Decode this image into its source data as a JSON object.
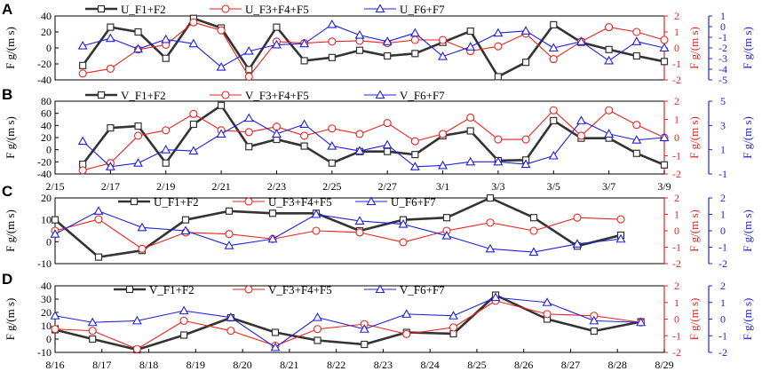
{
  "colors": {
    "s1": "#333333",
    "s2": "#e8231f",
    "s3": "#2020dd",
    "axis": "#000000"
  },
  "chart_data": [
    {
      "type": "line",
      "panel_label": "A",
      "left_label": "F g/(m s)",
      "right1_label": "F g/(m s)",
      "right2_label": "F g/(m s)",
      "x_tick_labels": [],
      "x_domain": [
        0,
        22
      ],
      "y1_range": [
        -40,
        40
      ],
      "y1_ticks": [
        -40,
        -20,
        0,
        20,
        40
      ],
      "y1_tick_labels": [
        "-40",
        "-20",
        "0",
        "20",
        "40"
      ],
      "y2_range": [
        -2,
        2
      ],
      "y2_ticks": [
        -2,
        -1,
        0,
        1,
        2
      ],
      "y2_tick_labels": [
        "-2",
        "-1",
        "0",
        "1",
        "2"
      ],
      "y3_range": [
        -5,
        1
      ],
      "y3_ticks": [
        -5,
        -4,
        -3,
        -2,
        -1,
        0,
        1
      ],
      "y3_tick_labels": [
        "-5",
        "-4",
        "-3",
        "-2",
        "-1",
        "0",
        "1"
      ],
      "series": [
        {
          "name": "U_F1+F2",
          "axis": "y1",
          "x": [
            1,
            2,
            3,
            4,
            5,
            6,
            7,
            8,
            9,
            10,
            11,
            12,
            13,
            14,
            15,
            16,
            17,
            18,
            19,
            20,
            21,
            22
          ],
          "values": [
            -22,
            26,
            20,
            -13,
            37,
            25,
            -27,
            26,
            -16,
            -12,
            -3,
            -10,
            -7,
            7,
            21,
            -36,
            -18,
            29,
            7,
            -2,
            -10,
            -17
          ]
        },
        {
          "name": "U_F3+F4+F5",
          "axis": "y2",
          "x": [
            1,
            2,
            3,
            4,
            5,
            6,
            7,
            8,
            9,
            10,
            11,
            12,
            13,
            14,
            15,
            16,
            17,
            18,
            19,
            20,
            21,
            22
          ],
          "values": [
            -1.6,
            -1.3,
            -0.1,
            0.2,
            1.6,
            1.1,
            -1.8,
            0.4,
            0.3,
            0.4,
            0.45,
            0.3,
            0.5,
            0.5,
            -0.2,
            0.1,
            0.9,
            -0.7,
            0.4,
            1.3,
            1.0,
            0.5
          ]
        },
        {
          "name": "U_F6+F7",
          "axis": "y3",
          "x": [
            1,
            2,
            3,
            4,
            5,
            6,
            7,
            8,
            9,
            10,
            11,
            12,
            13,
            14,
            15,
            16,
            17,
            18,
            19,
            20,
            21,
            22
          ],
          "values": [
            -1.8,
            -1.1,
            -2.1,
            -1.2,
            -1.6,
            -3.8,
            -2.3,
            -1.7,
            -1.6,
            0.2,
            -0.8,
            -1.4,
            -0.6,
            -2.8,
            -1.9,
            -0.6,
            -0.4,
            -2.0,
            -1.4,
            -3.2,
            -1.4,
            -2.0
          ]
        }
      ]
    },
    {
      "type": "line",
      "panel_label": "B",
      "left_label": "F g/(m s)",
      "right1_label": "F g/(m s)",
      "right2_label": "F g/(m s)",
      "x_domain": [
        0,
        22
      ],
      "x_tick_positions": [
        0,
        2,
        4,
        6,
        8,
        10,
        12,
        14,
        16,
        18,
        20,
        22
      ],
      "x_tick_labels": [
        "2/15",
        "2/17",
        "2/19",
        "2/21",
        "2/23",
        "2/25",
        "2/27",
        "3/1",
        "3/3",
        "3/5",
        "3/7",
        "3/9"
      ],
      "y1_range": [
        -40,
        80
      ],
      "y1_ticks": [
        -40,
        -20,
        0,
        20,
        40,
        60,
        80
      ],
      "y1_tick_labels": [
        "-40",
        "-20",
        "0",
        "20",
        "40",
        "60",
        "80"
      ],
      "y2_range": [
        -2,
        2
      ],
      "y2_ticks": [
        -2,
        -1,
        0,
        1,
        2
      ],
      "y2_tick_labels": [
        "-2",
        "-1",
        "0",
        "1",
        "2"
      ],
      "y3_range": [
        -1,
        5
      ],
      "y3_ticks": [
        -1,
        1,
        3,
        5
      ],
      "y3_tick_labels": [
        "-1",
        "1",
        "3",
        "5"
      ],
      "series": [
        {
          "name": "V_F1+F2",
          "axis": "y1",
          "x": [
            1,
            2,
            3,
            4,
            5,
            6,
            7,
            8,
            9,
            10,
            11,
            12,
            13,
            14,
            15,
            16,
            17,
            18,
            19,
            20,
            21,
            22
          ],
          "values": [
            -24,
            36,
            39,
            -22,
            42,
            73,
            5,
            17,
            6,
            -22,
            -3,
            -3,
            -8,
            23,
            31,
            -18,
            -17,
            48,
            19,
            19,
            -6,
            -25
          ]
        },
        {
          "name": "V_F3+F4+F5",
          "axis": "y2",
          "x": [
            1,
            2,
            3,
            4,
            5,
            6,
            7,
            8,
            9,
            10,
            11,
            12,
            13,
            14,
            15,
            16,
            17,
            18,
            19,
            20,
            21,
            22
          ],
          "values": [
            -1.8,
            -1.4,
            0.1,
            0.4,
            1.3,
            0.4,
            0.3,
            0.6,
            0.1,
            0.5,
            0.2,
            0.8,
            -0.2,
            0.2,
            1.1,
            -0.1,
            -0.1,
            1.5,
            0.1,
            1.5,
            0.7,
            0.0
          ]
        },
        {
          "name": "V_F6+F7",
          "axis": "y3",
          "x": [
            1,
            2,
            3,
            4,
            5,
            6,
            7,
            8,
            9,
            10,
            11,
            12,
            13,
            14,
            15,
            16,
            17,
            18,
            19,
            20,
            21,
            22
          ],
          "values": [
            1.7,
            -0.4,
            -0.1,
            1.0,
            0.9,
            2.3,
            3.6,
            2.3,
            3.1,
            1.3,
            0.9,
            1.4,
            -0.4,
            -0.3,
            0.0,
            0.0,
            -0.2,
            0.5,
            3.4,
            2.3,
            1.8,
            2.0
          ]
        }
      ]
    },
    {
      "type": "line",
      "panel_label": "C",
      "left_label": "F g/(m s)",
      "right1_label": "F g/(m s)",
      "right2_label": "F g/(m s)",
      "x_domain": [
        0,
        14
      ],
      "x_tick_labels": [],
      "y1_range": [
        -10,
        20
      ],
      "y1_ticks": [
        -10,
        0,
        10,
        20
      ],
      "y1_tick_labels": [
        "-10",
        "0",
        "10",
        "20"
      ],
      "y2_range": [
        -2,
        2
      ],
      "y2_ticks": [
        -2,
        -1,
        0,
        1,
        2
      ],
      "y2_tick_labels": [
        "-2",
        "-1",
        "0",
        "1",
        "2"
      ],
      "y3_range": [
        -2,
        2
      ],
      "y3_ticks": [
        -2,
        -1,
        0,
        1,
        2
      ],
      "y3_tick_labels": [
        "-2",
        "-1",
        "0",
        "1",
        "2"
      ],
      "series": [
        {
          "name": "U_F1+F2",
          "axis": "y1",
          "x": [
            0,
            1,
            2,
            3,
            4,
            5,
            6,
            7,
            8,
            9,
            10,
            11,
            12,
            13
          ],
          "values": [
            10,
            -7,
            -4,
            10,
            14,
            13,
            13,
            5,
            10,
            11,
            20,
            11,
            -2,
            3
          ]
        },
        {
          "name": "U_F3+F4+F5",
          "axis": "y2",
          "x": [
            0,
            1,
            2,
            3,
            4,
            5,
            6,
            7,
            8,
            9,
            10,
            11,
            12,
            13
          ],
          "values": [
            0.0,
            0.7,
            -1.1,
            -0.1,
            -0.2,
            -0.5,
            0.0,
            -0.1,
            -0.7,
            0.0,
            0.5,
            0.0,
            0.8,
            0.7
          ]
        },
        {
          "name": "U_F6+F7",
          "axis": "y3",
          "x": [
            0,
            1,
            2,
            3,
            4,
            5,
            6,
            7,
            8,
            9,
            10,
            11,
            12,
            13
          ],
          "values": [
            -0.2,
            1.2,
            0.2,
            0.0,
            -0.9,
            -0.5,
            1.0,
            0.6,
            0.4,
            -0.3,
            -1.1,
            -1.3,
            -0.8,
            -0.5
          ]
        }
      ]
    },
    {
      "type": "line",
      "panel_label": "D",
      "left_label": "F g/(m s)",
      "right1_label": "F g/(m s)",
      "right2_label": "F g/(m s)",
      "x_domain": [
        0,
        13
      ],
      "x_tick_positions": [
        0,
        1,
        2,
        3,
        4,
        5,
        6,
        7,
        8,
        9,
        10,
        11,
        12,
        13
      ],
      "x_tick_labels": [
        "8/16",
        "8/17",
        "8/18",
        "8/19",
        "8/20",
        "8/21",
        "8/22",
        "8/23",
        "8/24",
        "8/25",
        "8/26",
        "8/27",
        "8/28",
        "8/29"
      ],
      "y1_range": [
        -10,
        40
      ],
      "y1_ticks": [
        -10,
        0,
        10,
        20,
        30,
        40
      ],
      "y1_tick_labels": [
        "-10",
        "0",
        "10",
        "20",
        "30",
        "40"
      ],
      "y2_range": [
        -2,
        2
      ],
      "y2_ticks": [
        -2,
        -1,
        0,
        1,
        2
      ],
      "y2_tick_labels": [
        "-2",
        "-1",
        "0",
        "1",
        "2"
      ],
      "y3_range": [
        -2,
        2
      ],
      "y3_ticks": [
        -2,
        -1,
        0,
        1,
        2
      ],
      "y3_tick_labels": [
        "-2",
        "-1",
        "0",
        "1",
        "2"
      ],
      "series": [
        {
          "name": "V_F1+F2",
          "axis": "y1",
          "x": [
            0,
            0.8,
            1.75,
            2.75,
            3.75,
            4.7,
            5.6,
            6.6,
            7.5,
            8.5,
            9.4,
            10.5,
            11.5,
            12.5
          ],
          "values": [
            7,
            0,
            -8,
            3,
            16,
            5,
            -1,
            -4,
            5,
            4,
            33,
            15,
            6,
            13
          ]
        },
        {
          "name": "V_F3+F4+F5",
          "axis": "y2",
          "x": [
            0,
            0.8,
            1.75,
            2.75,
            3.75,
            4.7,
            5.6,
            6.6,
            7.5,
            8.5,
            9.4,
            10.5,
            11.5,
            12.5
          ],
          "values": [
            -0.6,
            -0.7,
            -1.8,
            -0.1,
            -0.7,
            -1.6,
            -0.6,
            -0.3,
            -0.9,
            -0.5,
            1.1,
            0.3,
            0.2,
            -0.2
          ]
        },
        {
          "name": "V_F6+F7",
          "axis": "y3",
          "x": [
            0,
            0.8,
            1.75,
            2.75,
            3.75,
            4.7,
            5.6,
            6.6,
            7.5,
            8.5,
            9.4,
            10.5,
            11.5,
            12.5
          ],
          "values": [
            0.2,
            -0.2,
            -0.1,
            0.5,
            0.1,
            -1.7,
            0.1,
            -0.6,
            0.3,
            0.2,
            1.3,
            1.0,
            -0.1,
            -0.2
          ]
        }
      ]
    }
  ]
}
